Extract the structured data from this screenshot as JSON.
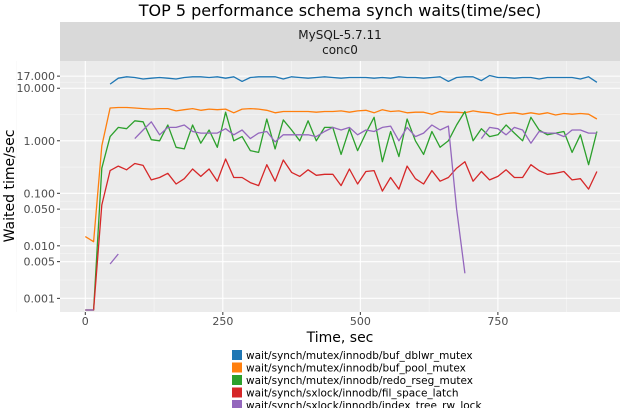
{
  "chart_data": {
    "type": "line",
    "title": "TOP 5 performance schema synch waits(time/sec)",
    "facet_strip": [
      "MySQL-5.7.11",
      "conc0"
    ],
    "xlabel": "Time, sec",
    "ylabel": "Waited time/sec",
    "y_scale": "log10",
    "xlim": [
      -46,
      972
    ],
    "ylim": [
      0.00055,
      33
    ],
    "x_ticks": [
      0,
      250,
      500,
      750
    ],
    "x_tick_labels": [
      "0",
      "250",
      "500",
      "750"
    ],
    "y_ticks": [
      17,
      10,
      1,
      0.1,
      0.05,
      0.01,
      0.005,
      0.001
    ],
    "y_tick_labels": [
      "17.000",
      "10.000",
      "1.000",
      "0.100",
      "0.050",
      "0.010",
      "0.005",
      "0.001"
    ],
    "grid": true,
    "legend_position": "bottom",
    "x_step": 15,
    "series": [
      {
        "name": "wait/synch/mutex/innodb/buf_dblwr_mutex",
        "color": "#1f77b4",
        "values": [
          null,
          null,
          null,
          12,
          15.5,
          16.5,
          16,
          15,
          15.5,
          16,
          15.5,
          15,
          16,
          16.5,
          16.5,
          16,
          16.5,
          15.5,
          16.5,
          13.5,
          16,
          16.5,
          16.5,
          16.5,
          15,
          16.5,
          16,
          15.5,
          16,
          16.5,
          16,
          15.5,
          16,
          16,
          16,
          15.5,
          16,
          15.5,
          16.5,
          16,
          16,
          15.5,
          16,
          16.5,
          13.5,
          16,
          16.5,
          16.5,
          14,
          17.5,
          16,
          16,
          15.5,
          16,
          16,
          15,
          16,
          16,
          16,
          16,
          15,
          16.5,
          13
        ]
      },
      {
        "name": "wait/synch/mutex/innodb/buf_pool_mutex",
        "color": "#ff7f0e",
        "values": [
          0.015,
          0.012,
          0.8,
          4.2,
          4.3,
          4.3,
          4.2,
          4.1,
          4.0,
          4.1,
          4.1,
          3.7,
          3.9,
          4.1,
          3.8,
          4.0,
          3.9,
          4.0,
          3.4,
          4.0,
          4.1,
          4.0,
          3.8,
          3.4,
          3.6,
          3.6,
          3.6,
          3.6,
          3.5,
          3.6,
          3.6,
          3.7,
          3.5,
          3.7,
          3.8,
          3.4,
          3.9,
          3.6,
          3.7,
          3.4,
          3.5,
          3.5,
          3.2,
          3.6,
          3.5,
          3.5,
          3.4,
          3.7,
          3.5,
          3.4,
          3.1,
          3.3,
          3.4,
          3.2,
          3.4,
          3.2,
          3.4,
          3.1,
          3.3,
          3.2,
          3.3,
          3.2,
          2.6
        ]
      },
      {
        "name": "wait/synch/mutex/innodb/redo_rseg_mutex",
        "color": "#2ca02c",
        "values": [
          0.0006,
          0.0006,
          0.3,
          1.2,
          1.8,
          1.7,
          2.4,
          2.3,
          1.05,
          1.0,
          2.0,
          0.75,
          0.7,
          2.0,
          0.9,
          1.6,
          0.75,
          3.5,
          1.0,
          1.2,
          0.65,
          0.6,
          2.6,
          0.7,
          2.5,
          1.6,
          1.0,
          2.4,
          1.0,
          1.8,
          1.8,
          0.55,
          1.7,
          0.65,
          1.4,
          2.8,
          0.4,
          1.5,
          0.5,
          2.6,
          1.0,
          0.55,
          1.5,
          0.75,
          1.0,
          2.0,
          3.6,
          1.0,
          1.7,
          1.2,
          1.3,
          2.0,
          1.4,
          1.0,
          2.8,
          1.6,
          1.3,
          1.4,
          1.5,
          0.6,
          1.3,
          0.35,
          1.5
        ]
      },
      {
        "name": "wait/synch/sxlock/innodb/fil_space_latch",
        "color": "#d62728",
        "values": [
          0.0006,
          0.0006,
          0.06,
          0.27,
          0.33,
          0.28,
          0.37,
          0.34,
          0.18,
          0.2,
          0.24,
          0.15,
          0.19,
          0.29,
          0.21,
          0.29,
          0.17,
          0.45,
          0.2,
          0.2,
          0.16,
          0.14,
          0.35,
          0.17,
          0.43,
          0.25,
          0.21,
          0.28,
          0.22,
          0.23,
          0.23,
          0.14,
          0.29,
          0.15,
          0.26,
          0.27,
          0.11,
          0.2,
          0.12,
          0.33,
          0.19,
          0.15,
          0.27,
          0.17,
          0.2,
          0.3,
          0.4,
          0.17,
          0.26,
          0.18,
          0.21,
          0.28,
          0.2,
          0.2,
          0.35,
          0.27,
          0.23,
          0.24,
          0.26,
          0.18,
          0.19,
          0.12,
          0.26
        ]
      },
      {
        "name": "wait/synch/sxlock/innodb/index_tree_rw_lock",
        "color": "#9467bd",
        "values": [
          0.0006,
          0.0006,
          null,
          0.0045,
          0.007,
          null,
          1.1,
          1.6,
          2.3,
          1.3,
          1.8,
          1.8,
          2.0,
          1.5,
          1.4,
          1.4,
          1.4,
          1.7,
          1.3,
          1.6,
          1.1,
          1.4,
          1.5,
          0.95,
          1.3,
          1.3,
          1.3,
          1.3,
          1.2,
          1.5,
          1.8,
          1.6,
          1.8,
          1.3,
          1.6,
          1.5,
          1.8,
          1.9,
          1.0,
          1.8,
          1.2,
          1.4,
          2.0,
          1.6,
          1.9,
          0.05,
          0.003,
          null,
          1.1,
          1.8,
          1.7,
          1.3,
          1.8,
          1.6,
          0.9,
          1.5,
          1.4,
          1.4,
          1.2,
          1.6,
          1.6,
          1.4,
          1.4
        ]
      }
    ]
  }
}
